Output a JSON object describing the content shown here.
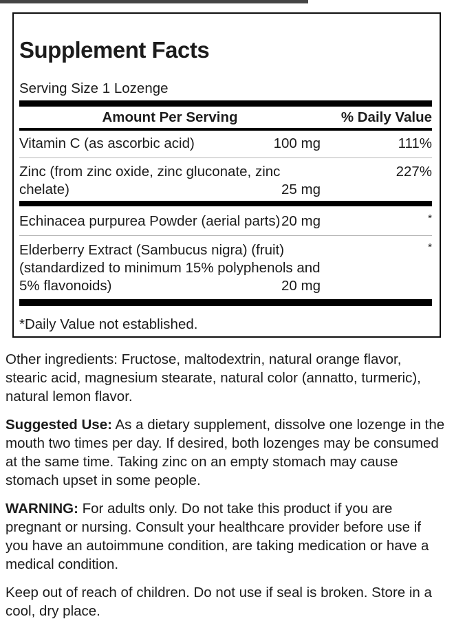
{
  "label": {
    "title": "Supplement Facts",
    "serving_size": "Serving Size 1 Lozenge",
    "header": {
      "amount": "Amount Per Serving",
      "daily_value": "% Daily Value"
    },
    "rows": [
      {
        "name_lines": [
          "Vitamin C (as ascorbic acid)"
        ],
        "amount": "100 mg",
        "dv": "111%"
      },
      {
        "name_lines": [
          "Zinc (from zinc oxide, zinc gluconate, zinc",
          "chelate)"
        ],
        "amount": "25 mg",
        "dv": "227%"
      },
      {
        "name_lines": [
          "Echinacea purpurea Powder (aerial parts)"
        ],
        "amount": "20 mg",
        "dv": "*"
      },
      {
        "name_lines": [
          "Elderberry Extract (Sambucus nigra) (fruit)",
          "(standardized to minimum 15% polyphenols and",
          "5% flavonoids)"
        ],
        "amount": "20 mg",
        "dv": "*"
      }
    ],
    "footnote": "*Daily Value not established."
  },
  "info": {
    "other_ingredients_lines": [
      "Other ingredients: Fructose, maltodextrin, natural orange flavor,",
      "stearic acid, magnesium stearate, natural color (annatto, turmeric),",
      "natural lemon flavor."
    ],
    "suggested_use": {
      "label": "Suggested Use:",
      "lines": [
        "As a dietary supplement, dissolve one lozenge in the",
        "mouth two times per day. If desired, both lozenges may be consumed",
        "at the same time. Taking zinc on an empty stomach may cause",
        "stomach upset in some people."
      ]
    },
    "warning": {
      "label": "WARNING:",
      "lines": [
        "For adults only. Do not take this product if you are",
        "pregnant or nursing. Consult your healthcare provider before use if",
        "you have an autoimmune condition, are taking medication or have a",
        "medical condition."
      ]
    },
    "storage_lines": [
      "Keep out of reach of children. Do not use if seal is broken. Store in a",
      "cool, dry place."
    ]
  },
  "colors": {
    "text": "#1c1c1c",
    "box_border": "#0e0e0e",
    "heavy_rule": "#000000",
    "thin_rule": "#b8b8b8",
    "top_mark": "#454545",
    "background": "#ffffff"
  }
}
